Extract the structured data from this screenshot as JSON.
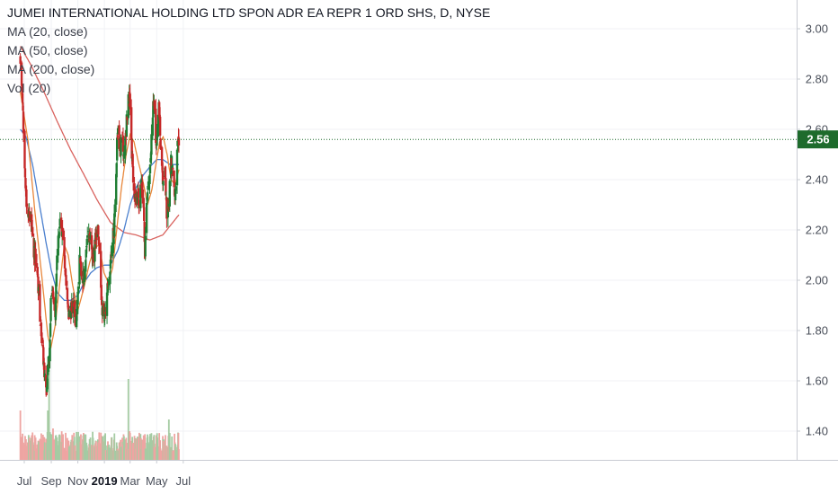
{
  "chart_data": {
    "type": "candlestick",
    "title": "JUMEI INTERNATIONAL HOLDING LTD SPON ADR EA REPR 1 ORD SHS, D, NYSE",
    "indicators": [
      "MA (20, close)",
      "MA (50, close)",
      "MA (200, close)",
      "Vol (20)"
    ],
    "last_price": "2.56",
    "ylim": [
      1.3,
      3.1
    ],
    "y_ticks": [
      "3.00",
      "2.80",
      "2.60",
      "2.40",
      "2.20",
      "2.00",
      "1.80",
      "1.60",
      "1.40"
    ],
    "x_ticks": [
      "Jul",
      "Sep",
      "Nov",
      "2019",
      "Mar",
      "May",
      "Jul"
    ],
    "x_tick_bold": "2019",
    "x_tick_dates": [
      "2018-07-01",
      "2018-09-01",
      "2018-11-01",
      "2019-01-01",
      "2019-03-01",
      "2019-05-01",
      "2019-07-01"
    ],
    "date_range": [
      "2018-06-22",
      "2019-06-21"
    ],
    "close_anchors": [
      [
        "2018-06-22",
        2.85
      ],
      [
        "2018-06-27",
        2.7
      ],
      [
        "2018-07-02",
        2.45
      ],
      [
        "2018-07-06",
        2.32
      ],
      [
        "2018-07-11",
        2.28
      ],
      [
        "2018-07-16",
        2.25
      ],
      [
        "2018-07-20",
        2.15
      ],
      [
        "2018-07-25",
        2.1
      ],
      [
        "2018-07-30",
        2.05
      ],
      [
        "2018-08-03",
        1.95
      ],
      [
        "2018-08-08",
        1.8
      ],
      [
        "2018-08-13",
        1.7
      ],
      [
        "2018-08-17",
        1.62
      ],
      [
        "2018-08-21",
        1.55
      ],
      [
        "2018-08-24",
        1.65
      ],
      [
        "2018-08-28",
        1.68
      ],
      [
        "2018-08-31",
        1.9
      ],
      [
        "2018-09-05",
        1.95
      ],
      [
        "2018-09-10",
        1.88
      ],
      [
        "2018-09-14",
        2.1
      ],
      [
        "2018-09-18",
        2.2
      ],
      [
        "2018-09-24",
        2.22
      ],
      [
        "2018-09-28",
        2.18
      ],
      [
        "2018-10-03",
        2.05
      ],
      [
        "2018-10-08",
        1.95
      ],
      [
        "2018-10-12",
        1.85
      ],
      [
        "2018-10-17",
        1.88
      ],
      [
        "2018-10-22",
        1.92
      ],
      [
        "2018-10-26",
        1.85
      ],
      [
        "2018-10-31",
        1.88
      ],
      [
        "2018-11-05",
        2.1
      ],
      [
        "2018-11-09",
        2.05
      ],
      [
        "2018-11-14",
        2.0
      ],
      [
        "2018-11-19",
        2.1
      ],
      [
        "2018-11-23",
        2.15
      ],
      [
        "2018-11-28",
        2.18
      ],
      [
        "2018-12-03",
        2.1
      ],
      [
        "2018-12-07",
        2.05
      ],
      [
        "2018-12-12",
        2.18
      ],
      [
        "2018-12-17",
        2.2
      ],
      [
        "2018-12-21",
        2.1
      ],
      [
        "2018-12-26",
        1.9
      ],
      [
        "2018-12-31",
        1.85
      ],
      [
        "2019-01-04",
        1.9
      ],
      [
        "2019-01-09",
        1.98
      ],
      [
        "2019-01-14",
        2.05
      ],
      [
        "2019-01-18",
        2.15
      ],
      [
        "2019-01-23",
        2.2
      ],
      [
        "2019-01-28",
        2.45
      ],
      [
        "2019-01-31",
        2.6
      ],
      [
        "2019-02-05",
        2.52
      ],
      [
        "2019-02-11",
        2.55
      ],
      [
        "2019-02-15",
        2.5
      ],
      [
        "2019-02-20",
        2.6
      ],
      [
        "2019-02-25",
        2.75
      ],
      [
        "2019-02-28",
        2.7
      ],
      [
        "2019-03-05",
        2.5
      ],
      [
        "2019-03-08",
        2.38
      ],
      [
        "2019-03-13",
        2.32
      ],
      [
        "2019-03-18",
        2.35
      ],
      [
        "2019-03-22",
        2.32
      ],
      [
        "2019-03-27",
        2.38
      ],
      [
        "2019-04-01",
        2.3
      ],
      [
        "2019-04-04",
        2.12
      ],
      [
        "2019-04-09",
        2.35
      ],
      [
        "2019-04-15",
        2.45
      ],
      [
        "2019-04-19",
        2.55
      ],
      [
        "2019-04-24",
        2.72
      ],
      [
        "2019-04-29",
        2.55
      ],
      [
        "2019-05-02",
        2.55
      ],
      [
        "2019-05-06",
        2.72
      ],
      [
        "2019-05-10",
        2.55
      ],
      [
        "2019-05-15",
        2.4
      ],
      [
        "2019-05-20",
        2.45
      ],
      [
        "2019-05-24",
        2.25
      ],
      [
        "2019-05-29",
        2.3
      ],
      [
        "2019-06-03",
        2.48
      ],
      [
        "2019-06-07",
        2.42
      ],
      [
        "2019-06-12",
        2.32
      ],
      [
        "2019-06-17",
        2.52
      ],
      [
        "2019-06-21",
        2.56
      ]
    ],
    "ma20_anchors": [
      [
        "2018-06-22",
        2.75
      ],
      [
        "2018-07-10",
        2.55
      ],
      [
        "2018-07-25",
        2.28
      ],
      [
        "2018-08-10",
        2.02
      ],
      [
        "2018-08-24",
        1.78
      ],
      [
        "2018-08-31",
        1.73
      ],
      [
        "2018-09-10",
        1.82
      ],
      [
        "2018-09-20",
        1.98
      ],
      [
        "2018-10-01",
        2.14
      ],
      [
        "2018-10-10",
        2.1
      ],
      [
        "2018-10-20",
        1.98
      ],
      [
        "2018-11-01",
        1.88
      ],
      [
        "2018-11-15",
        1.97
      ],
      [
        "2018-11-28",
        2.07
      ],
      [
        "2018-12-10",
        2.13
      ],
      [
        "2018-12-20",
        2.14
      ],
      [
        "2018-12-31",
        2.03
      ],
      [
        "2019-01-10",
        1.99
      ],
      [
        "2019-01-20",
        2.05
      ],
      [
        "2019-01-31",
        2.23
      ],
      [
        "2019-02-10",
        2.38
      ],
      [
        "2019-02-20",
        2.5
      ],
      [
        "2019-03-01",
        2.58
      ],
      [
        "2019-03-10",
        2.55
      ],
      [
        "2019-03-20",
        2.47
      ],
      [
        "2019-03-31",
        2.39
      ],
      [
        "2019-04-10",
        2.3
      ],
      [
        "2019-04-20",
        2.36
      ],
      [
        "2019-04-30",
        2.47
      ],
      [
        "2019-05-08",
        2.55
      ],
      [
        "2019-05-16",
        2.57
      ],
      [
        "2019-05-25",
        2.5
      ],
      [
        "2019-06-03",
        2.4
      ],
      [
        "2019-06-12",
        2.38
      ],
      [
        "2019-06-21",
        2.44
      ]
    ],
    "ma50_anchors": [
      [
        "2018-06-22",
        2.6
      ],
      [
        "2018-07-05",
        2.57
      ],
      [
        "2018-07-20",
        2.46
      ],
      [
        "2018-08-05",
        2.3
      ],
      [
        "2018-08-20",
        2.15
      ],
      [
        "2018-09-01",
        2.04
      ],
      [
        "2018-09-15",
        1.95
      ],
      [
        "2018-10-01",
        1.92
      ],
      [
        "2018-10-15",
        1.92
      ],
      [
        "2018-11-01",
        1.94
      ],
      [
        "2018-11-15",
        1.99
      ],
      [
        "2018-12-01",
        2.03
      ],
      [
        "2018-12-15",
        2.05
      ],
      [
        "2019-01-01",
        2.06
      ],
      [
        "2019-01-15",
        2.06
      ],
      [
        "2019-02-01",
        2.12
      ],
      [
        "2019-02-15",
        2.2
      ],
      [
        "2019-03-01",
        2.3
      ],
      [
        "2019-03-15",
        2.37
      ],
      [
        "2019-04-01",
        2.42
      ],
      [
        "2019-04-15",
        2.45
      ],
      [
        "2019-05-01",
        2.48
      ],
      [
        "2019-05-15",
        2.48
      ],
      [
        "2019-06-01",
        2.46
      ],
      [
        "2019-06-21",
        2.46
      ]
    ],
    "ma200_anchors": [
      [
        "2018-06-22",
        2.93
      ],
      [
        "2018-07-15",
        2.86
      ],
      [
        "2018-08-15",
        2.75
      ],
      [
        "2018-09-15",
        2.63
      ],
      [
        "2018-10-15",
        2.52
      ],
      [
        "2018-11-15",
        2.42
      ],
      [
        "2018-12-15",
        2.32
      ],
      [
        "2019-01-15",
        2.23
      ],
      [
        "2019-02-15",
        2.19
      ],
      [
        "2019-03-15",
        2.18
      ],
      [
        "2019-04-15",
        2.16
      ],
      [
        "2019-05-15",
        2.18
      ],
      [
        "2019-06-21",
        2.26
      ]
    ],
    "colors": {
      "up": "#1e7d32",
      "down": "#c62828",
      "vol_up": "#a5cba3",
      "vol_down": "#eea5a2",
      "ma20": "#e8863a",
      "ma50": "#4a7fce",
      "ma200": "#d9635f",
      "last_price_bg": "#1e6b2c",
      "grid": "#f0f2f5"
    }
  }
}
